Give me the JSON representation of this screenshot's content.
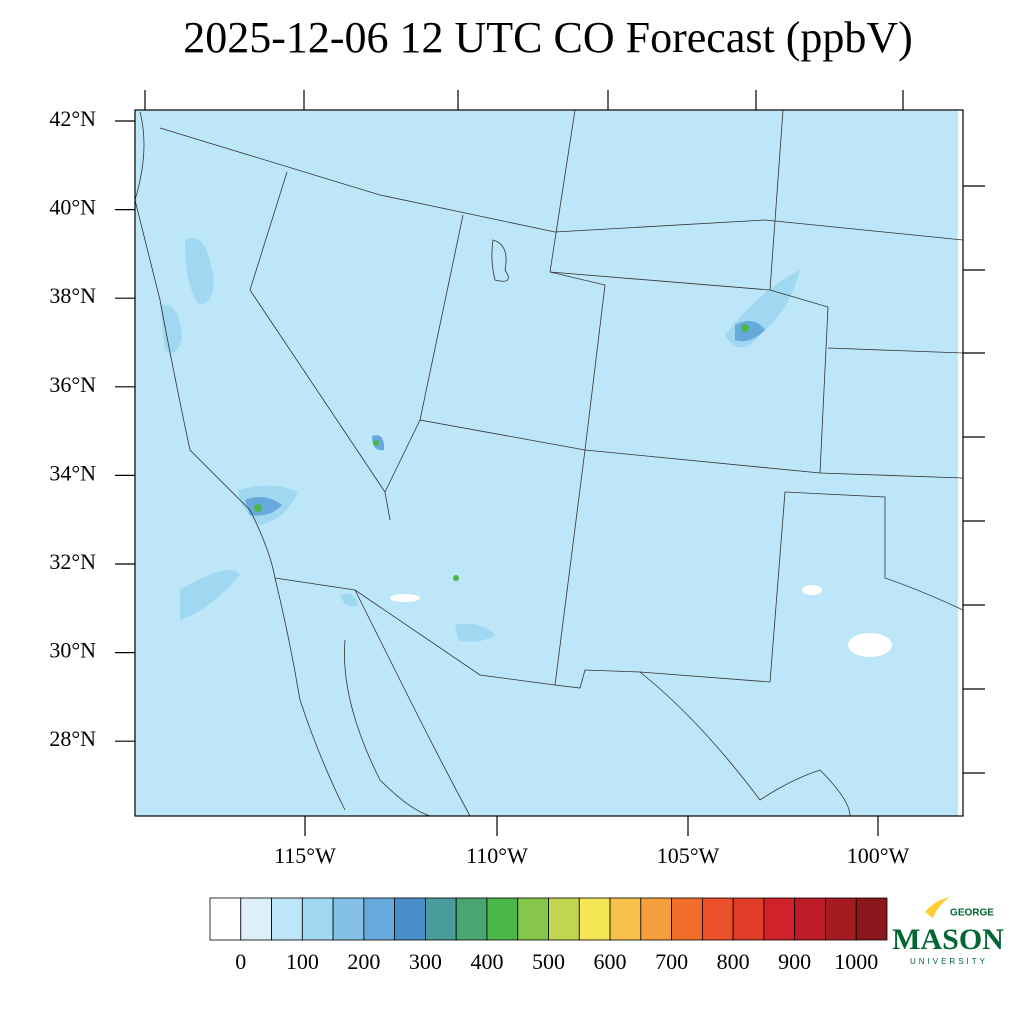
{
  "title": "2025-12-06 12 UTC CO Forecast (ppbV)",
  "lat_labels": [
    "42°N",
    "40°N",
    "38°N",
    "36°N",
    "34°N",
    "32°N",
    "30°N",
    "28°N"
  ],
  "lon_labels": [
    "115°W",
    "110°W",
    "105°W",
    "100°W"
  ],
  "colorbar": {
    "colors": [
      "#ffffff",
      "#ddf0fa",
      "#bde6f8",
      "#a0d8f2",
      "#85c1e6",
      "#68a9dc",
      "#4a8ec9",
      "#4a9b9c",
      "#49a672",
      "#4bb649",
      "#85c64b",
      "#c1d54e",
      "#f5e655",
      "#f8c14c",
      "#f5a03c",
      "#f16e2a",
      "#ec502a",
      "#e03c2a",
      "#d0222b",
      "#bc1c28",
      "#a41b22",
      "#8b161c"
    ],
    "labels": [
      "0",
      "100",
      "200",
      "300",
      "400",
      "500",
      "600",
      "700",
      "800",
      "900",
      "1000"
    ]
  },
  "logo": {
    "top": "GEORGE",
    "name": "MASON",
    "bottom": "UNIVERSITY"
  }
}
